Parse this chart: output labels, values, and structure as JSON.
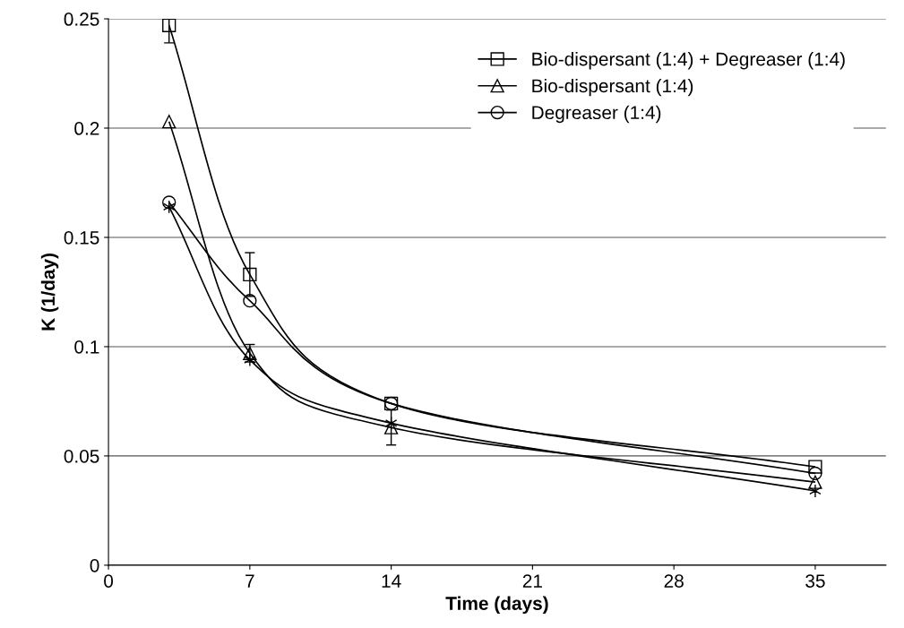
{
  "chart_data": {
    "type": "line",
    "xlabel": "Time (days)",
    "ylabel": "K (1/day)",
    "x": [
      3,
      7,
      14,
      35
    ],
    "series": [
      {
        "name": "Bio-dispersant (1:4) + Degreaser (1:4)",
        "color": "#000000",
        "marker": "square",
        "values": [
          0.247,
          0.133,
          0.074,
          0.045
        ],
        "errors": [
          0.008,
          0.01,
          null,
          null
        ]
      },
      {
        "name": "Bio-dispersant (1:4)",
        "color": "#000000",
        "marker": "triangle",
        "values": [
          0.203,
          0.097,
          0.063,
          0.038
        ],
        "errors": [
          null,
          0.004,
          0.008,
          null
        ]
      },
      {
        "name": "Degreaser (1:4)",
        "color": "#000000",
        "marker": "circle",
        "values": [
          0.166,
          0.121,
          0.074,
          0.042
        ]
      },
      {
        "color": "#000000",
        "marker": "cross",
        "values": [
          0.164,
          0.094,
          0.065,
          0.034
        ]
      }
    ],
    "xlim": [
      0,
      38.5
    ],
    "xticks": [
      0,
      7,
      14,
      21,
      28,
      35
    ],
    "ylim": [
      0,
      0.25
    ],
    "yticks": [
      0,
      0.05,
      {
        "value": 0.1,
        "label": "0.1"
      },
      0.15,
      {
        "value": 0.2,
        "label": "0.2"
      },
      0.25
    ],
    "grid": "y",
    "legend": "top right",
    "line_style": "solid"
  }
}
